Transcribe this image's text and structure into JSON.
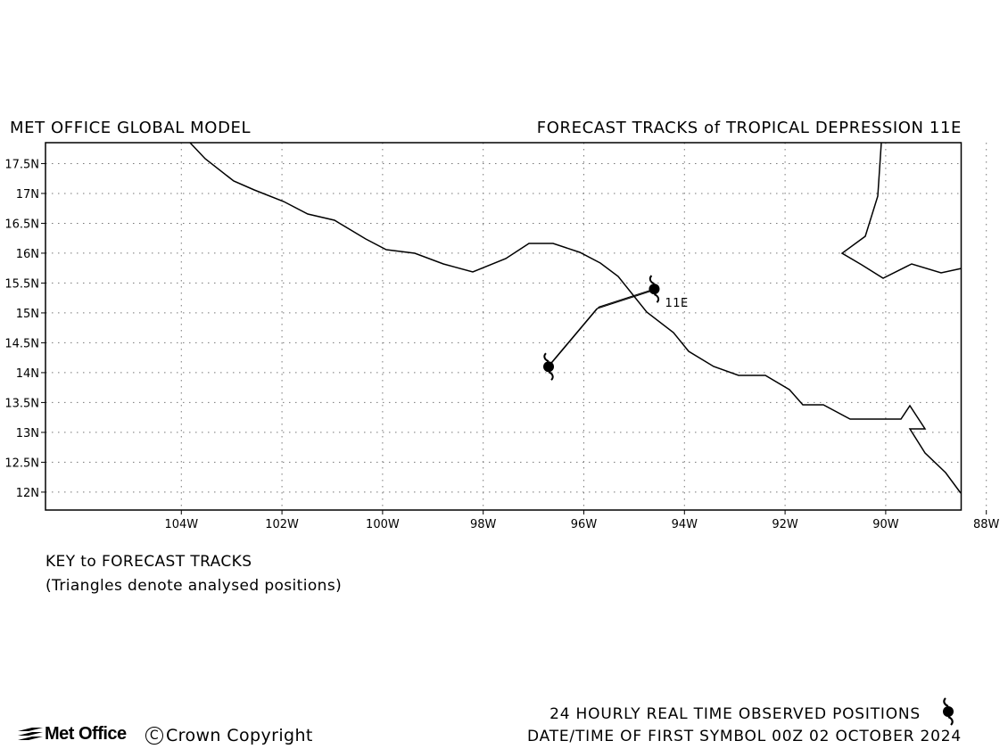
{
  "header": {
    "left_title": "MET OFFICE GLOBAL MODEL",
    "right_title": "FORECAST TRACKS of TROPICAL DEPRESSION 11E"
  },
  "map": {
    "lon_range": [
      -106.7,
      -88.5
    ],
    "lat_range": [
      11.7,
      17.85
    ],
    "lon_ticks": [
      "104W",
      "102W",
      "100W",
      "98W",
      "96W",
      "94W",
      "92W",
      "90W",
      "88W"
    ],
    "lat_ticks": [
      "17.5N",
      "17N",
      "16.5N",
      "16N",
      "15.5N",
      "15N",
      "14.5N",
      "14N",
      "13.5N",
      "13N",
      "12.5N",
      "12N"
    ],
    "grid": "dotted",
    "storm_label": "11E",
    "track": [
      {
        "lon": -94.6,
        "lat": 15.4
      },
      {
        "lon": -95.7,
        "lat": 15.1
      },
      {
        "lon": -96.7,
        "lat": 14.1
      }
    ]
  },
  "key": {
    "title": "KEY to FORECAST TRACKS",
    "note": "(Triangles denote analysed positions)"
  },
  "footer": {
    "observed_label": "24 HOURLY REAL TIME OBSERVED POSITIONS",
    "datetime_label": "DATE/TIME OF FIRST SYMBOL 00Z 02 OCTOBER 2024",
    "logo_text": "Met Office",
    "copyright_text": "Crown Copyright",
    "copyright_symbol": "C"
  }
}
